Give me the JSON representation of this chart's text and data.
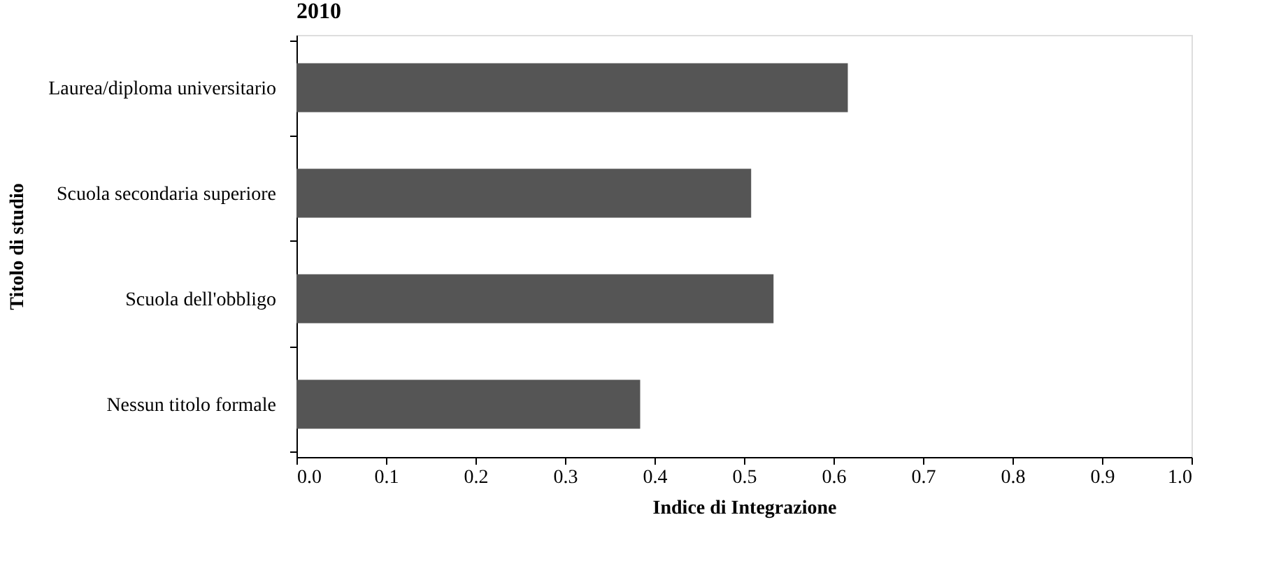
{
  "chart_data": {
    "type": "bar",
    "orientation": "horizontal",
    "title": "2010",
    "categories": [
      "Laurea/diploma universitario",
      "Scuola secondaria superiore",
      "Scuola dell'obbligo",
      "Nessun titolo formale"
    ],
    "values": [
      0.616,
      0.508,
      0.533,
      0.384
    ],
    "color": "#555555",
    "xlim": [
      0.0,
      1.0
    ],
    "xticks": [
      {
        "value": 0,
        "label": "0.0"
      },
      0.1,
      0.2,
      0.3,
      0.4,
      0.5,
      0.6,
      0.7,
      0.8,
      0.9,
      {
        "value": 1,
        "label": "1.0"
      }
    ],
    "xlabel": "Indice di Integrazione",
    "ylabel": "Titolo di studio",
    "grid": false
  }
}
